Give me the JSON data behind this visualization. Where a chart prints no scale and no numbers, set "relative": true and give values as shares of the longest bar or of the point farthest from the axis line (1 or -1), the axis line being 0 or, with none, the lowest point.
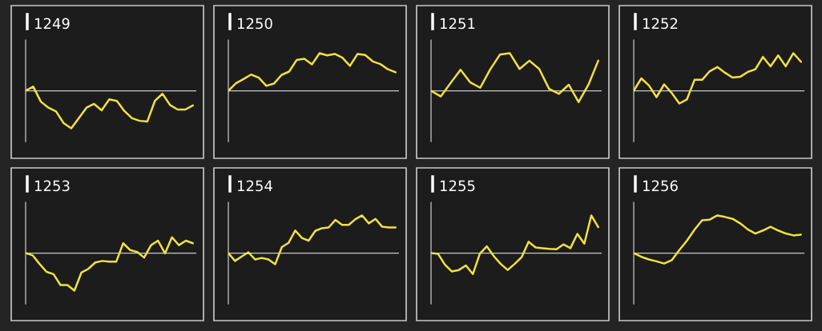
{
  "chart_data": [
    {
      "type": "line",
      "title": "1249",
      "relative": true,
      "categories": [
        null,
        null,
        null,
        null,
        null,
        null,
        null,
        null,
        null,
        null,
        null,
        null,
        null,
        null,
        null,
        null,
        null,
        null,
        null,
        null,
        null,
        null,
        null
      ],
      "series": [
        {
          "color": "#f2e23c",
          "values": [
            0,
            0.11,
            -0.29,
            -0.45,
            -0.55,
            -0.86,
            -1,
            -0.73,
            -0.45,
            -0.35,
            -0.52,
            -0.23,
            -0.27,
            -0.54,
            -0.73,
            -0.8,
            -0.82,
            -0.27,
            -0.08,
            -0.38,
            -0.5,
            -0.5,
            -0.39
          ]
        }
      ]
    },
    {
      "type": "line",
      "title": "1250",
      "relative": true,
      "categories": [
        null,
        null,
        null,
        null,
        null,
        null,
        null,
        null,
        null,
        null,
        null,
        null,
        null,
        null,
        null,
        null,
        null,
        null,
        null,
        null,
        null,
        null,
        null
      ],
      "series": [
        {
          "color": "#f2e23c",
          "values": [
            0,
            0.2,
            0.31,
            0.43,
            0.35,
            0.13,
            0.19,
            0.42,
            0.51,
            0.82,
            0.85,
            0.7,
            1,
            0.94,
            0.98,
            0.88,
            0.66,
            0.98,
            0.95,
            0.78,
            0.71,
            0.57,
            0.49
          ]
        }
      ]
    },
    {
      "type": "line",
      "title": "1251",
      "relative": true,
      "categories": [
        null,
        null,
        null,
        null,
        null,
        null,
        null,
        null,
        null,
        null,
        null,
        null,
        null,
        null,
        null,
        null,
        null,
        null
      ],
      "series": [
        {
          "color": "#f2e23c",
          "values": [
            0,
            -0.15,
            0.21,
            0.56,
            0.22,
            0.08,
            0.56,
            0.96,
            1,
            0.58,
            0.8,
            0.58,
            0.05,
            -0.08,
            0.16,
            -0.3,
            0.16,
            0.8
          ]
        }
      ]
    },
    {
      "type": "line",
      "title": "1252",
      "relative": true,
      "categories": [
        null,
        null,
        null,
        null,
        null,
        null,
        null,
        null,
        null,
        null,
        null,
        null,
        null,
        null,
        null,
        null,
        null,
        null,
        null,
        null,
        null,
        null,
        null
      ],
      "series": [
        {
          "color": "#f2e23c",
          "values": [
            0,
            0.33,
            0.14,
            -0.17,
            0.17,
            -0.06,
            -0.34,
            -0.23,
            0.29,
            0.29,
            0.52,
            0.63,
            0.48,
            0.35,
            0.37,
            0.5,
            0.57,
            0.9,
            0.65,
            0.94,
            0.65,
            1,
            0.77
          ]
        }
      ]
    },
    {
      "type": "line",
      "title": "1253",
      "relative": true,
      "categories": [
        null,
        null,
        null,
        null,
        null,
        null,
        null,
        null,
        null,
        null,
        null,
        null,
        null,
        null,
        null,
        null,
        null,
        null,
        null,
        null,
        null,
        null,
        null,
        null,
        null
      ],
      "series": [
        {
          "color": "#f2e23c",
          "values": [
            0,
            -0.06,
            -0.29,
            -0.5,
            -0.56,
            -0.85,
            -0.85,
            -1,
            -0.52,
            -0.42,
            -0.25,
            -0.21,
            -0.23,
            -0.23,
            0.26,
            0.08,
            0.03,
            -0.12,
            0.21,
            0.33,
            -0.01,
            0.42,
            0.21,
            0.33,
            0.26
          ]
        }
      ]
    },
    {
      "type": "line",
      "title": "1254",
      "relative": true,
      "categories": [
        null,
        null,
        null,
        null,
        null,
        null,
        null,
        null,
        null,
        null,
        null,
        null,
        null,
        null,
        null,
        null,
        null,
        null,
        null,
        null,
        null,
        null,
        null,
        null,
        null,
        null
      ],
      "series": [
        {
          "color": "#f2e23c",
          "values": [
            0,
            -0.21,
            -0.09,
            0.02,
            -0.17,
            -0.13,
            -0.17,
            -0.3,
            0.16,
            0.27,
            0.6,
            0.4,
            0.33,
            0.59,
            0.66,
            0.68,
            0.88,
            0.75,
            0.75,
            0.9,
            1,
            0.79,
            0.91,
            0.7,
            0.68,
            0.68
          ]
        }
      ]
    },
    {
      "type": "line",
      "title": "1255",
      "relative": true,
      "categories": [
        null,
        null,
        null,
        null,
        null,
        null,
        null,
        null,
        null,
        null,
        null,
        null,
        null,
        null,
        null,
        null,
        null,
        null,
        null,
        null,
        null,
        null,
        null,
        null,
        null
      ],
      "series": [
        {
          "color": "#f2e23c",
          "values": [
            0,
            -0.02,
            -0.31,
            -0.49,
            -0.45,
            -0.33,
            -0.56,
            -0.02,
            0.18,
            -0.08,
            -0.29,
            -0.45,
            -0.29,
            -0.11,
            0.3,
            0.15,
            0.13,
            0.11,
            0.1,
            0.23,
            0.13,
            0.51,
            0.25,
            1,
            0.69
          ]
        }
      ]
    },
    {
      "type": "line",
      "title": "1256",
      "relative": true,
      "categories": [
        null,
        null,
        null,
        null,
        null,
        null,
        null,
        null,
        null,
        null,
        null,
        null,
        null,
        null,
        null,
        null,
        null,
        null,
        null,
        null,
        null,
        null,
        null
      ],
      "series": [
        {
          "color": "#f2e23c",
          "values": [
            0,
            -0.1,
            -0.17,
            -0.22,
            -0.28,
            -0.19,
            0.08,
            0.33,
            0.62,
            0.87,
            0.89,
            1,
            0.96,
            0.91,
            0.79,
            0.63,
            0.52,
            0.6,
            0.7,
            0.6,
            0.52,
            0.47,
            0.49
          ]
        }
      ]
    }
  ]
}
